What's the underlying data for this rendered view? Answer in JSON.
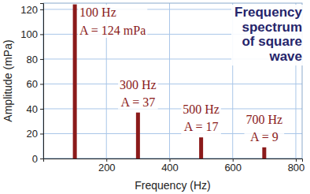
{
  "chart_data": {
    "type": "bar",
    "title": "Frequency spectrum of square wave",
    "x_label": "Frequency (Hz)",
    "y_label": "Amplitude (mPa)",
    "x": [
      100,
      300,
      500,
      700
    ],
    "values": [
      124,
      37,
      17,
      9
    ],
    "annotations": [
      "100 Hz",
      "300 Hz",
      "500 Hz",
      "700 Hz"
    ],
    "value_labels": [
      "A = 124 mPa",
      "A = 37",
      "A = 17",
      "A = 9"
    ],
    "data_labels": true,
    "color": "#8b1a1a",
    "xlim": [
      0,
      820
    ],
    "xticks": [
      200,
      400,
      600,
      800
    ],
    "ylim": [
      0,
      125
    ],
    "yticks": [
      0,
      20,
      40,
      60,
      80,
      100,
      120
    ],
    "grid": true
  }
}
